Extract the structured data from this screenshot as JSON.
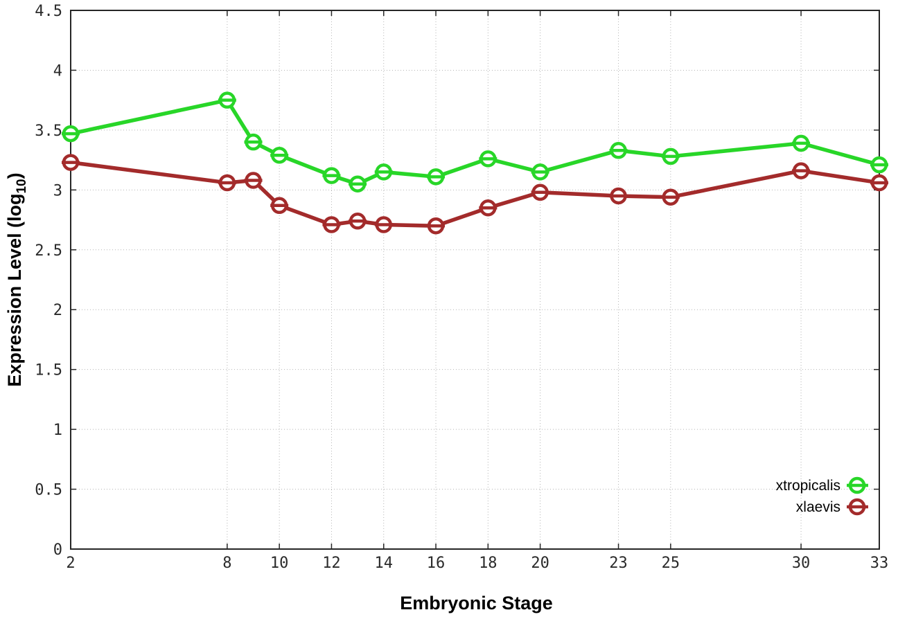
{
  "chart_data": {
    "type": "line",
    "title": "",
    "xlabel": "Embryonic Stage",
    "ylabel": {
      "text": "Expression Level (log",
      "sub": "10",
      "suffix": ")"
    },
    "x": [
      2,
      8,
      9,
      10,
      12,
      13,
      14,
      16,
      18,
      20,
      23,
      25,
      30,
      33
    ],
    "xticks": [
      2,
      8,
      10,
      12,
      14,
      16,
      18,
      20,
      23,
      25,
      30,
      33
    ],
    "yticks": [
      0,
      0.5,
      1,
      1.5,
      2,
      2.5,
      3,
      3.5,
      4,
      4.5
    ],
    "xlim": [
      2,
      33
    ],
    "ylim": [
      0,
      4.5
    ],
    "grid": true,
    "legend_position": "bottom-right",
    "marker": "open-circle-with-hbar",
    "series": [
      {
        "name": "xtropicalis",
        "color": "#28d628",
        "values": [
          3.47,
          3.75,
          3.4,
          3.29,
          3.12,
          3.05,
          3.15,
          3.11,
          3.26,
          3.15,
          3.33,
          3.28,
          3.39,
          3.21
        ]
      },
      {
        "name": "xlaevis",
        "color": "#a32b2b",
        "values": [
          3.23,
          3.06,
          3.08,
          2.87,
          2.71,
          2.74,
          2.71,
          2.7,
          2.85,
          2.98,
          2.95,
          2.94,
          3.16,
          3.06
        ]
      }
    ],
    "colors": {
      "background": "#ffffff",
      "border": "#262626",
      "grid": "#b4b4b4",
      "tick_text": "#2a2a2a"
    }
  }
}
